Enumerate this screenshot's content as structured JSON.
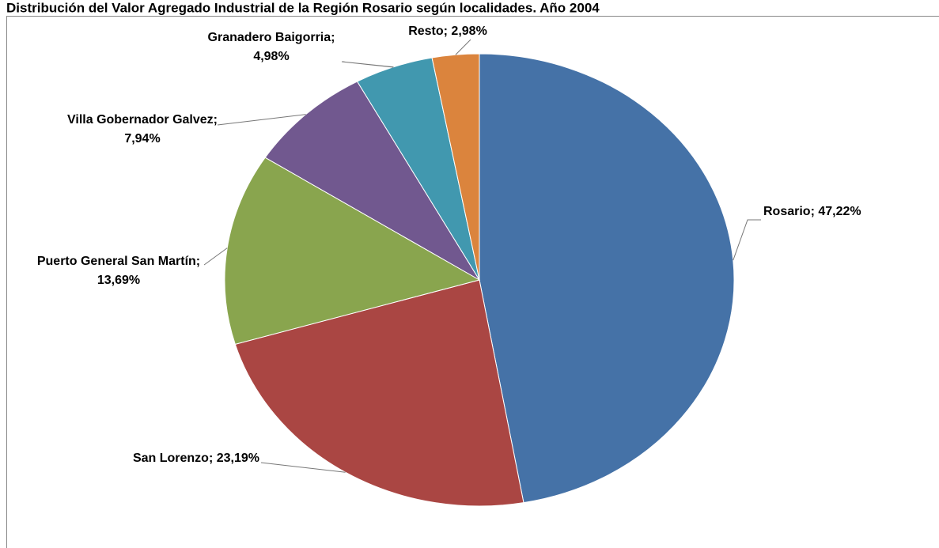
{
  "chart_data": {
    "type": "pie",
    "title": "Distribución del Valor Agregado Industrial de la Región Rosario según localidades. Año 2004",
    "categories": [
      "Rosario",
      "San Lorenzo",
      "Puerto General San Martín",
      "Villa Gobernador Galvez",
      "Granadero Baigorria",
      "Resto"
    ],
    "values": [
      47.22,
      23.19,
      13.69,
      7.94,
      4.98,
      2.98
    ],
    "value_labels": [
      "47,22%",
      "23,19%",
      "13,69%",
      "7,94%",
      "4,98%",
      "2,98%"
    ],
    "label_separator": "; ",
    "colors": [
      "#4572a7",
      "#aa4643",
      "#89a54e",
      "#71588f",
      "#4198af",
      "#db843d"
    ]
  }
}
